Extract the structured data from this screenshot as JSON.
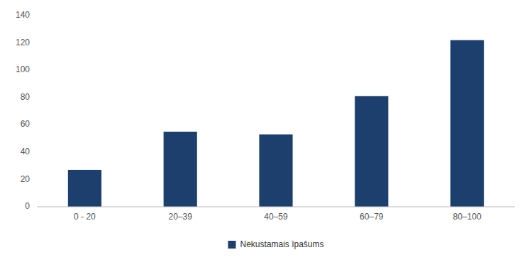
{
  "chart_data": {
    "type": "bar",
    "categories": [
      "0 - 20",
      "20–39",
      "40–59",
      "60–79",
      "80–100"
    ],
    "series": [
      {
        "name": "Nekustamais īpašums",
        "color": "#1c3f6e",
        "values": [
          27,
          55,
          53,
          81,
          122
        ]
      }
    ],
    "ylim": [
      0,
      140
    ],
    "yticks": [
      0,
      20,
      40,
      60,
      80,
      100,
      120,
      140
    ],
    "grid": false,
    "legend": "bottom"
  }
}
